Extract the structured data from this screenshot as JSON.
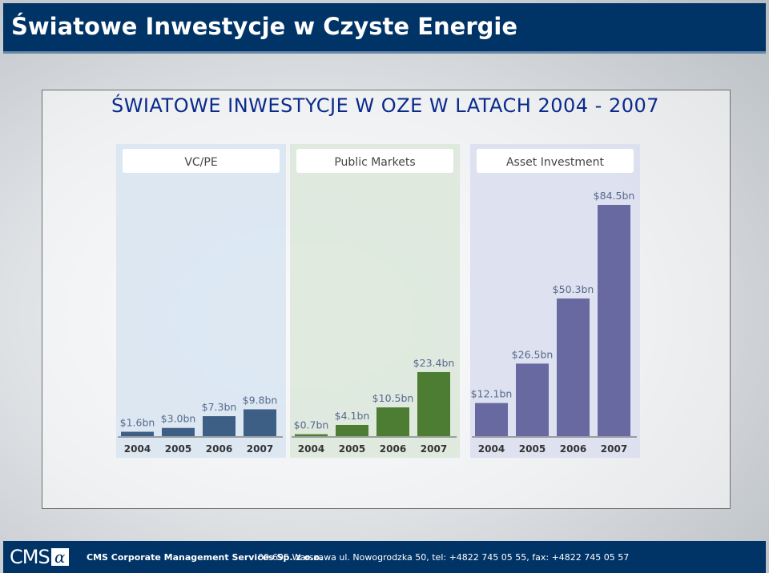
{
  "header": {
    "title": "Światowe Inwestycje w Czyste Energie"
  },
  "slide": {
    "heading": "ŚWIATOWE INWESTYCJE W OZE W LATACH 2004 - 2007"
  },
  "chart_data": {
    "type": "bar",
    "categories": [
      "2004",
      "2005",
      "2006",
      "2007"
    ],
    "unit": "$bn",
    "ylim": [
      0,
      84.5
    ],
    "grid": false,
    "panels": [
      {
        "title": "VC/PE",
        "values": [
          1.6,
          3.0,
          7.3,
          9.8
        ],
        "labels": [
          "$1.6bn",
          "$3.0bn",
          "$7.3bn",
          "$9.8bn"
        ],
        "color": "#3e5f85",
        "panel_color": "#d9e6f2"
      },
      {
        "title": "Public Markets",
        "values": [
          0.7,
          4.1,
          10.5,
          23.4
        ],
        "labels": [
          "$0.7bn",
          "$4.1bn",
          "$10.5bn",
          "$23.4bn"
        ],
        "color": "#4d7d33",
        "panel_color": "#dde8dc"
      },
      {
        "title": "Asset Investment",
        "values": [
          12.1,
          26.5,
          50.3,
          84.5
        ],
        "labels": [
          "$12.1bn",
          "$26.5bn",
          "$50.3bn",
          "$84.5bn"
        ],
        "color": "#6869a0",
        "panel_color": "#dcdfee"
      }
    ]
  },
  "footer": {
    "logo_text": "CMS",
    "logo_symbol": "α",
    "company": "CMS Corporate Management Services Sp. z o.o.",
    "address": "00-695 Warszawa  ul. Nowogrodzka 50, tel: +4822 745 05 55,  fax: +4822 745 05 57"
  }
}
